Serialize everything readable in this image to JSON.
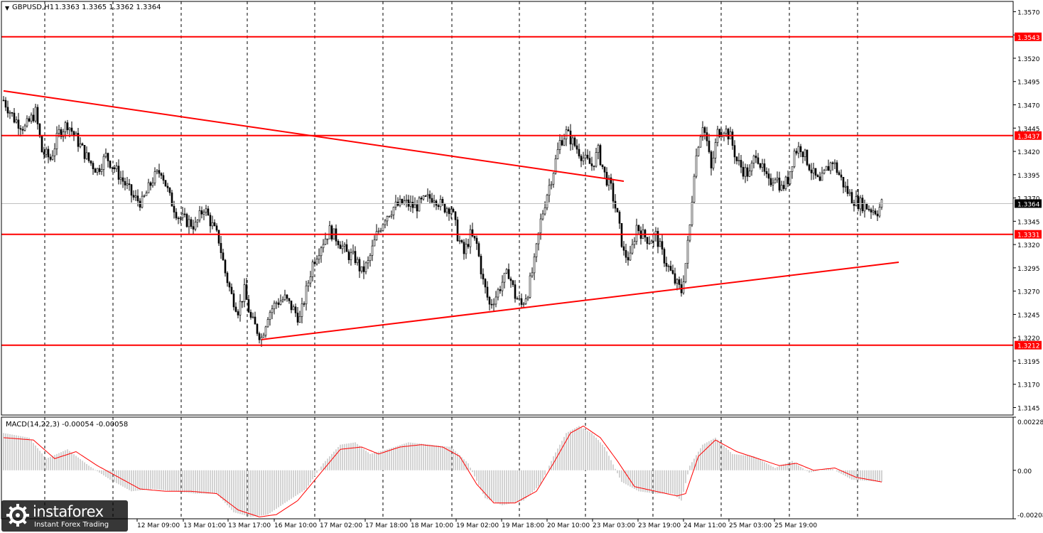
{
  "window": {
    "symbol_title": "GBPUSD,H1",
    "ohlc": "1.3363 1.3365 1.3362 1.3364",
    "macd_title": "MACD(14,22,3) -0.00054 -0.00058"
  },
  "colors": {
    "background": "#ffffff",
    "frame": "#000000",
    "grid": "#000000",
    "candle": "#000000",
    "level": "#ff0000",
    "macd_bar": "#c0c0c0",
    "signal": "#ff0000"
  },
  "watermark": {
    "name": "instaforex",
    "tagline": "Instant Forex Trading"
  },
  "chart_data": [
    {
      "type": "candlestick",
      "symbol": "GBPUSD",
      "timeframe": "H1",
      "ylim": [
        1.3137,
        1.3581
      ],
      "y_ticks": [
        "1.3570",
        "1.3545",
        "1.3520",
        "1.3495",
        "1.3470",
        "1.3445",
        "1.3420",
        "1.3395",
        "1.3370",
        "1.3345",
        "1.3320",
        "1.3295",
        "1.3270",
        "1.3245",
        "1.3220",
        "1.3195",
        "1.3170",
        "1.3145"
      ],
      "x_labels": [
        "12 Mar 09:00",
        "13 Mar 01:00",
        "13 Mar 17:00",
        "16 Mar 10:00",
        "17 Mar 02:00",
        "17 Mar 18:00",
        "18 Mar 10:00",
        "19 Mar 02:00",
        "19 Mar 18:00",
        "20 Mar 10:00",
        "23 Mar 03:00",
        "23 Mar 19:00",
        "24 Mar 11:00",
        "25 Mar 03:00",
        "25 Mar 19:00"
      ],
      "vertical_grid": "dashed",
      "horizontal_levels": [
        {
          "label": "1.3543",
          "value": 1.3543
        },
        {
          "label": "1.3437",
          "value": 1.3437
        },
        {
          "label": "1.3331",
          "value": 1.3331
        },
        {
          "label": "1.3212",
          "value": 1.3212
        }
      ],
      "current_price": {
        "label": "1.3364",
        "value": 1.3364
      },
      "trendlines": [
        {
          "name": "descending",
          "from": {
            "bar": 0,
            "price": 1.3485
          },
          "to": {
            "bar": 291,
            "price": 1.3388
          }
        },
        {
          "name": "ascending",
          "from": {
            "bar": 121,
            "price": 1.3218
          },
          "to": {
            "bar": 420,
            "price": 1.3301
          }
        }
      ],
      "price_path": [
        {
          "bar": 0,
          "price": 1.3475
        },
        {
          "bar": 5,
          "price": 1.3455
        },
        {
          "bar": 10,
          "price": 1.3445
        },
        {
          "bar": 15,
          "price": 1.3462
        },
        {
          "bar": 18,
          "price": 1.342
        },
        {
          "bar": 22,
          "price": 1.3412
        },
        {
          "bar": 26,
          "price": 1.344
        },
        {
          "bar": 30,
          "price": 1.345
        },
        {
          "bar": 35,
          "price": 1.343
        },
        {
          "bar": 40,
          "price": 1.341
        },
        {
          "bar": 44,
          "price": 1.34
        },
        {
          "bar": 48,
          "price": 1.3415
        },
        {
          "bar": 52,
          "price": 1.3402
        },
        {
          "bar": 57,
          "price": 1.3385
        },
        {
          "bar": 61,
          "price": 1.337
        },
        {
          "bar": 65,
          "price": 1.3365
        },
        {
          "bar": 70,
          "price": 1.339
        },
        {
          "bar": 74,
          "price": 1.34
        },
        {
          "bar": 78,
          "price": 1.337
        },
        {
          "bar": 82,
          "price": 1.335
        },
        {
          "bar": 86,
          "price": 1.3345
        },
        {
          "bar": 90,
          "price": 1.334
        },
        {
          "bar": 94,
          "price": 1.336
        },
        {
          "bar": 98,
          "price": 1.334
        },
        {
          "bar": 101,
          "price": 1.3325
        },
        {
          "bar": 104,
          "price": 1.329
        },
        {
          "bar": 107,
          "price": 1.3265
        },
        {
          "bar": 110,
          "price": 1.325
        },
        {
          "bar": 113,
          "price": 1.327
        },
        {
          "bar": 116,
          "price": 1.324
        },
        {
          "bar": 119,
          "price": 1.3228
        },
        {
          "bar": 121,
          "price": 1.322
        },
        {
          "bar": 124,
          "price": 1.3245
        },
        {
          "bar": 128,
          "price": 1.3258
        },
        {
          "bar": 132,
          "price": 1.3262
        },
        {
          "bar": 136,
          "price": 1.325
        },
        {
          "bar": 139,
          "price": 1.324
        },
        {
          "bar": 142,
          "price": 1.327
        },
        {
          "bar": 145,
          "price": 1.33
        },
        {
          "bar": 149,
          "price": 1.332
        },
        {
          "bar": 153,
          "price": 1.3335
        },
        {
          "bar": 157,
          "price": 1.3325
        },
        {
          "bar": 161,
          "price": 1.331
        },
        {
          "bar": 165,
          "price": 1.3305
        },
        {
          "bar": 168,
          "price": 1.329
        },
        {
          "bar": 171,
          "price": 1.33
        },
        {
          "bar": 175,
          "price": 1.333
        },
        {
          "bar": 179,
          "price": 1.335
        },
        {
          "bar": 183,
          "price": 1.336
        },
        {
          "bar": 188,
          "price": 1.3365
        },
        {
          "bar": 193,
          "price": 1.336
        },
        {
          "bar": 198,
          "price": 1.3368
        },
        {
          "bar": 202,
          "price": 1.3372
        },
        {
          "bar": 206,
          "price": 1.336
        },
        {
          "bar": 210,
          "price": 1.336
        },
        {
          "bar": 213,
          "price": 1.333
        },
        {
          "bar": 216,
          "price": 1.331
        },
        {
          "bar": 219,
          "price": 1.333
        },
        {
          "bar": 222,
          "price": 1.332
        },
        {
          "bar": 225,
          "price": 1.328
        },
        {
          "bar": 228,
          "price": 1.3255
        },
        {
          "bar": 231,
          "price": 1.3265
        },
        {
          "bar": 234,
          "price": 1.328
        },
        {
          "bar": 237,
          "price": 1.329
        },
        {
          "bar": 240,
          "price": 1.3265
        },
        {
          "bar": 243,
          "price": 1.3255
        },
        {
          "bar": 246,
          "price": 1.327
        },
        {
          "bar": 249,
          "price": 1.33
        },
        {
          "bar": 252,
          "price": 1.3345
        },
        {
          "bar": 255,
          "price": 1.3375
        },
        {
          "bar": 258,
          "price": 1.34
        },
        {
          "bar": 261,
          "price": 1.343
        },
        {
          "bar": 264,
          "price": 1.344
        },
        {
          "bar": 267,
          "price": 1.343
        },
        {
          "bar": 270,
          "price": 1.342
        },
        {
          "bar": 273,
          "price": 1.341
        },
        {
          "bar": 276,
          "price": 1.3405
        },
        {
          "bar": 279,
          "price": 1.342
        },
        {
          "bar": 282,
          "price": 1.3395
        },
        {
          "bar": 285,
          "price": 1.338
        },
        {
          "bar": 288,
          "price": 1.335
        },
        {
          "bar": 291,
          "price": 1.331
        },
        {
          "bar": 294,
          "price": 1.3305
        },
        {
          "bar": 297,
          "price": 1.334
        },
        {
          "bar": 300,
          "price": 1.333
        },
        {
          "bar": 303,
          "price": 1.3325
        },
        {
          "bar": 306,
          "price": 1.333
        },
        {
          "bar": 309,
          "price": 1.331
        },
        {
          "bar": 312,
          "price": 1.3295
        },
        {
          "bar": 315,
          "price": 1.328
        },
        {
          "bar": 318,
          "price": 1.327
        },
        {
          "bar": 320,
          "price": 1.33
        },
        {
          "bar": 322,
          "price": 1.334
        },
        {
          "bar": 324,
          "price": 1.34
        },
        {
          "bar": 326,
          "price": 1.343
        },
        {
          "bar": 328,
          "price": 1.345
        },
        {
          "bar": 330,
          "price": 1.343
        },
        {
          "bar": 332,
          "price": 1.34
        },
        {
          "bar": 335,
          "price": 1.344
        },
        {
          "bar": 338,
          "price": 1.3445
        },
        {
          "bar": 341,
          "price": 1.3435
        },
        {
          "bar": 344,
          "price": 1.341
        },
        {
          "bar": 347,
          "price": 1.34
        },
        {
          "bar": 350,
          "price": 1.3395
        },
        {
          "bar": 353,
          "price": 1.342
        },
        {
          "bar": 356,
          "price": 1.34
        },
        {
          "bar": 359,
          "price": 1.3385
        },
        {
          "bar": 362,
          "price": 1.3395
        },
        {
          "bar": 365,
          "price": 1.338
        },
        {
          "bar": 368,
          "price": 1.339
        },
        {
          "bar": 371,
          "price": 1.342
        },
        {
          "bar": 374,
          "price": 1.3425
        },
        {
          "bar": 377,
          "price": 1.341
        },
        {
          "bar": 380,
          "price": 1.3395
        },
        {
          "bar": 383,
          "price": 1.3385
        },
        {
          "bar": 386,
          "price": 1.34
        },
        {
          "bar": 389,
          "price": 1.341
        },
        {
          "bar": 392,
          "price": 1.3395
        },
        {
          "bar": 395,
          "price": 1.338
        },
        {
          "bar": 398,
          "price": 1.337
        },
        {
          "bar": 401,
          "price": 1.3365
        },
        {
          "bar": 404,
          "price": 1.3362
        },
        {
          "bar": 407,
          "price": 1.3358
        },
        {
          "bar": 410,
          "price": 1.3356
        },
        {
          "bar": 412,
          "price": 1.3364
        }
      ],
      "macd": {
        "title": "MACD(14,22,3)",
        "ylim": [
          -0.00208,
          0.00228
        ],
        "y_ticks": [
          "0.00228",
          "0.00",
          "-0.00208"
        ],
        "histogram": [
          {
            "bar": 0,
            "value": 0.0016
          },
          {
            "bar": 12,
            "value": 0.0014
          },
          {
            "bar": 20,
            "value": 0.0005
          },
          {
            "bar": 30,
            "value": 0.0009
          },
          {
            "bar": 40,
            "value": 0.0002
          },
          {
            "bar": 50,
            "value": -0.0004
          },
          {
            "bar": 60,
            "value": -0.0009
          },
          {
            "bar": 70,
            "value": -0.0008
          },
          {
            "bar": 80,
            "value": -0.0009
          },
          {
            "bar": 90,
            "value": -0.001
          },
          {
            "bar": 100,
            "value": -0.001
          },
          {
            "bar": 108,
            "value": -0.0018
          },
          {
            "bar": 116,
            "value": -0.002
          },
          {
            "bar": 124,
            "value": -0.0019
          },
          {
            "bar": 132,
            "value": -0.0014
          },
          {
            "bar": 142,
            "value": -0.0008
          },
          {
            "bar": 150,
            "value": 0.0003
          },
          {
            "bar": 158,
            "value": 0.0011
          },
          {
            "bar": 165,
            "value": 0.0012
          },
          {
            "bar": 172,
            "value": 0.0007
          },
          {
            "bar": 180,
            "value": 0.0009
          },
          {
            "bar": 190,
            "value": 0.0012
          },
          {
            "bar": 200,
            "value": 0.0011
          },
          {
            "bar": 210,
            "value": 0.001
          },
          {
            "bar": 218,
            "value": 0.0003
          },
          {
            "bar": 226,
            "value": -0.0012
          },
          {
            "bar": 234,
            "value": -0.0015
          },
          {
            "bar": 244,
            "value": -0.0013
          },
          {
            "bar": 252,
            "value": -0.0006
          },
          {
            "bar": 258,
            "value": 0.0006
          },
          {
            "bar": 264,
            "value": 0.0016
          },
          {
            "bar": 270,
            "value": 0.0019
          },
          {
            "bar": 276,
            "value": 0.0016
          },
          {
            "bar": 282,
            "value": 0.001
          },
          {
            "bar": 290,
            "value": -0.0005
          },
          {
            "bar": 298,
            "value": -0.0009
          },
          {
            "bar": 306,
            "value": -0.001
          },
          {
            "bar": 314,
            "value": -0.001
          },
          {
            "bar": 318,
            "value": -0.0013
          },
          {
            "bar": 322,
            "value": 0.0002
          },
          {
            "bar": 328,
            "value": 0.0011
          },
          {
            "bar": 334,
            "value": 0.0014
          },
          {
            "bar": 342,
            "value": 0.0007
          },
          {
            "bar": 352,
            "value": 0.0006
          },
          {
            "bar": 362,
            "value": 0.0001
          },
          {
            "bar": 370,
            "value": 0.0004
          },
          {
            "bar": 378,
            "value": -0.0001
          },
          {
            "bar": 388,
            "value": 0.0001
          },
          {
            "bar": 398,
            "value": -0.0004
          },
          {
            "bar": 412,
            "value": -0.0005
          }
        ],
        "signal": [
          {
            "bar": 0,
            "value": 0.0014
          },
          {
            "bar": 14,
            "value": 0.0013
          },
          {
            "bar": 24,
            "value": 0.0005
          },
          {
            "bar": 34,
            "value": 0.0008
          },
          {
            "bar": 44,
            "value": 0.0002
          },
          {
            "bar": 54,
            "value": -0.0003
          },
          {
            "bar": 64,
            "value": -0.0008
          },
          {
            "bar": 76,
            "value": -0.0009
          },
          {
            "bar": 88,
            "value": -0.0009
          },
          {
            "bar": 100,
            "value": -0.001
          },
          {
            "bar": 110,
            "value": -0.0017
          },
          {
            "bar": 120,
            "value": -0.002
          },
          {
            "bar": 128,
            "value": -0.0019
          },
          {
            "bar": 138,
            "value": -0.0013
          },
          {
            "bar": 148,
            "value": -0.0002
          },
          {
            "bar": 158,
            "value": 0.0009
          },
          {
            "bar": 168,
            "value": 0.001
          },
          {
            "bar": 176,
            "value": 0.0007
          },
          {
            "bar": 186,
            "value": 0.001
          },
          {
            "bar": 196,
            "value": 0.0011
          },
          {
            "bar": 206,
            "value": 0.001
          },
          {
            "bar": 214,
            "value": 0.0006
          },
          {
            "bar": 222,
            "value": -0.0006
          },
          {
            "bar": 230,
            "value": -0.0014
          },
          {
            "bar": 240,
            "value": -0.0014
          },
          {
            "bar": 250,
            "value": -0.0009
          },
          {
            "bar": 258,
            "value": 0.0003
          },
          {
            "bar": 266,
            "value": 0.0016
          },
          {
            "bar": 272,
            "value": 0.0019
          },
          {
            "bar": 280,
            "value": 0.0014
          },
          {
            "bar": 288,
            "value": 0.0004
          },
          {
            "bar": 296,
            "value": -0.0007
          },
          {
            "bar": 306,
            "value": -0.0009
          },
          {
            "bar": 316,
            "value": -0.0011
          },
          {
            "bar": 320,
            "value": -0.001
          },
          {
            "bar": 326,
            "value": 0.0006
          },
          {
            "bar": 334,
            "value": 0.0013
          },
          {
            "bar": 344,
            "value": 0.0008
          },
          {
            "bar": 354,
            "value": 0.0005
          },
          {
            "bar": 364,
            "value": 0.0002
          },
          {
            "bar": 372,
            "value": 0.0003
          },
          {
            "bar": 380,
            "value": 0.0
          },
          {
            "bar": 390,
            "value": 0.0001
          },
          {
            "bar": 400,
            "value": -0.0003
          },
          {
            "bar": 412,
            "value": -0.0005
          }
        ]
      }
    }
  ]
}
